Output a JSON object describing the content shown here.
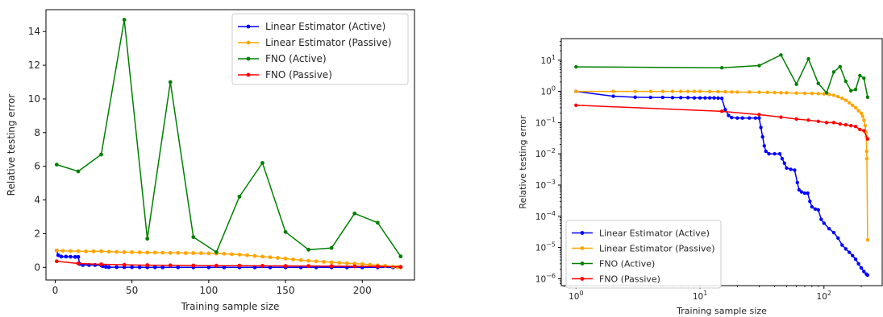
{
  "chart_data": [
    {
      "type": "line",
      "xlabel": "Training sample size",
      "ylabel": "Relative testing error",
      "xscale": "linear",
      "yscale": "linear",
      "xlim": [
        -6,
        234
      ],
      "ylim": [
        -0.75,
        15.3
      ],
      "xticks": [
        0,
        50,
        100,
        150,
        200
      ],
      "yticks": [
        0,
        2,
        4,
        6,
        8,
        10,
        12,
        14
      ],
      "xtick_labels": [
        "0",
        "50",
        "100",
        "150",
        "200"
      ],
      "ytick_labels": [
        "0",
        "2",
        "4",
        "6",
        "8",
        "10",
        "12",
        "14"
      ],
      "legend_location": "upper right",
      "grid": false,
      "series": [
        {
          "name": "Linear Estimator (Active)",
          "color": "#0000ff",
          "points": [
            [
              1,
              1.0
            ],
            [
              2,
              0.72
            ],
            [
              4,
              0.64
            ],
            [
              7,
              0.64
            ],
            [
              10,
              0.63
            ],
            [
              13,
              0.62
            ],
            [
              15,
              0.62
            ],
            [
              16,
              0.2
            ],
            [
              18,
              0.14
            ],
            [
              22,
              0.14
            ],
            [
              26,
              0.14
            ],
            [
              30,
              0.12
            ],
            [
              31,
              0.07
            ],
            [
              33,
              0.03
            ],
            [
              35,
              0.01
            ],
            [
              40,
              0.01
            ],
            [
              45,
              0.01
            ],
            [
              50,
              0.01
            ],
            [
              55,
              0.006
            ],
            [
              60,
              0.003
            ],
            [
              65,
              0.003
            ],
            [
              70,
              0.002
            ],
            [
              80,
              0.001
            ],
            [
              90,
              0.001
            ],
            [
              100,
              0.0
            ],
            [
              110,
              0.0
            ],
            [
              120,
              0.0
            ],
            [
              130,
              0.0
            ],
            [
              140,
              0.0
            ],
            [
              150,
              0.0
            ],
            [
              160,
              0.0
            ],
            [
              170,
              0.0
            ],
            [
              180,
              0.0
            ],
            [
              190,
              0.0
            ],
            [
              200,
              0.0
            ],
            [
              210,
              0.0
            ],
            [
              220,
              0.0
            ],
            [
              225,
              0.0
            ]
          ]
        },
        {
          "name": "Linear Estimator (Passive)",
          "color": "#ffa500",
          "points": [
            [
              1,
              1.0
            ],
            [
              5,
              0.98
            ],
            [
              10,
              0.97
            ],
            [
              15,
              0.96
            ],
            [
              20,
              0.95
            ],
            [
              25,
              0.95
            ],
            [
              30,
              0.96
            ],
            [
              35,
              0.93
            ],
            [
              40,
              0.92
            ],
            [
              45,
              0.9
            ],
            [
              50,
              0.9
            ],
            [
              55,
              0.89
            ],
            [
              60,
              0.88
            ],
            [
              65,
              0.88
            ],
            [
              70,
              0.87
            ],
            [
              75,
              0.86
            ],
            [
              80,
              0.86
            ],
            [
              85,
              0.85
            ],
            [
              90,
              0.85
            ],
            [
              95,
              0.84
            ],
            [
              100,
              0.83
            ],
            [
              105,
              0.82
            ],
            [
              110,
              0.81
            ],
            [
              115,
              0.78
            ],
            [
              120,
              0.76
            ],
            [
              125,
              0.72
            ],
            [
              130,
              0.68
            ],
            [
              135,
              0.64
            ],
            [
              140,
              0.6
            ],
            [
              145,
              0.56
            ],
            [
              150,
              0.52
            ],
            [
              155,
              0.47
            ],
            [
              160,
              0.43
            ],
            [
              165,
              0.39
            ],
            [
              170,
              0.36
            ],
            [
              175,
              0.33
            ],
            [
              180,
              0.3
            ],
            [
              185,
              0.27
            ],
            [
              190,
              0.24
            ],
            [
              195,
              0.22
            ],
            [
              200,
              0.2
            ],
            [
              205,
              0.16
            ],
            [
              210,
              0.12
            ],
            [
              215,
              0.09
            ],
            [
              220,
              0.05
            ],
            [
              223,
              0.02
            ],
            [
              225,
              0.0
            ]
          ]
        },
        {
          "name": "FNO (Active)",
          "color": "#008000",
          "points": [
            [
              1,
              6.1
            ],
            [
              15,
              5.7
            ],
            [
              30,
              6.7
            ],
            [
              45,
              14.7
            ],
            [
              60,
              1.7
            ],
            [
              75,
              11.0
            ],
            [
              90,
              1.8
            ],
            [
              105,
              0.9
            ],
            [
              120,
              4.2
            ],
            [
              135,
              6.2
            ],
            [
              150,
              2.1
            ],
            [
              165,
              1.05
            ],
            [
              180,
              1.15
            ],
            [
              195,
              3.2
            ],
            [
              210,
              2.65
            ],
            [
              225,
              0.65
            ]
          ]
        },
        {
          "name": "FNO (Passive)",
          "color": "#ff0000",
          "points": [
            [
              1,
              0.36
            ],
            [
              15,
              0.23
            ],
            [
              30,
              0.18
            ],
            [
              45,
              0.15
            ],
            [
              60,
              0.13
            ],
            [
              75,
              0.12
            ],
            [
              90,
              0.11
            ],
            [
              105,
              0.1
            ],
            [
              120,
              0.1
            ],
            [
              135,
              0.09
            ],
            [
              150,
              0.085
            ],
            [
              165,
              0.08
            ],
            [
              180,
              0.075
            ],
            [
              195,
              0.06
            ],
            [
              210,
              0.055
            ],
            [
              225,
              0.03
            ]
          ]
        }
      ]
    },
    {
      "type": "line",
      "xlabel": "Training sample size",
      "ylabel": "Relative testing error",
      "xscale": "log",
      "yscale": "log",
      "xlim": [
        0.76,
        295
      ],
      "ylim": [
        6e-07,
        49
      ],
      "xticks": [
        1,
        10,
        100
      ],
      "yticks": [
        1e-06,
        1e-05,
        0.0001,
        0.001,
        0.01,
        0.1,
        1,
        10
      ],
      "xtick_labels": [
        {
          "base": "10",
          "exp": "0"
        },
        {
          "base": "10",
          "exp": "1"
        },
        {
          "base": "10",
          "exp": "2"
        }
      ],
      "ytick_labels": [
        {
          "base": "10",
          "exp": "−6"
        },
        {
          "base": "10",
          "exp": "−5"
        },
        {
          "base": "10",
          "exp": "−4"
        },
        {
          "base": "10",
          "exp": "−3"
        },
        {
          "base": "10",
          "exp": "−2"
        },
        {
          "base": "10",
          "exp": "−1"
        },
        {
          "base": "10",
          "exp": "0"
        },
        {
          "base": "10",
          "exp": "1"
        }
      ],
      "legend_location": "lower left",
      "grid": false,
      "series": [
        {
          "name": "Linear Estimator (Active)",
          "color": "#0000ff",
          "points": [
            [
              1,
              1.0
            ],
            [
              2,
              0.7
            ],
            [
              3,
              0.65
            ],
            [
              4,
              0.64
            ],
            [
              5,
              0.64
            ],
            [
              6,
              0.63
            ],
            [
              7,
              0.63
            ],
            [
              8,
              0.63
            ],
            [
              9,
              0.62
            ],
            [
              10,
              0.62
            ],
            [
              11,
              0.62
            ],
            [
              12,
              0.62
            ],
            [
              13,
              0.62
            ],
            [
              14,
              0.61
            ],
            [
              15,
              0.6
            ],
            [
              16,
              0.26
            ],
            [
              17,
              0.17
            ],
            [
              18,
              0.145
            ],
            [
              20,
              0.14
            ],
            [
              22,
              0.14
            ],
            [
              25,
              0.14
            ],
            [
              28,
              0.14
            ],
            [
              30,
              0.14
            ],
            [
              31,
              0.07
            ],
            [
              32,
              0.035
            ],
            [
              33,
              0.018
            ],
            [
              34,
              0.012
            ],
            [
              36,
              0.01
            ],
            [
              40,
              0.01
            ],
            [
              44,
              0.01
            ],
            [
              46,
              0.007
            ],
            [
              48,
              0.005
            ],
            [
              50,
              0.0035
            ],
            [
              54,
              0.0032
            ],
            [
              58,
              0.003
            ],
            [
              61,
              0.0012
            ],
            [
              63,
              0.0007
            ],
            [
              66,
              0.0006
            ],
            [
              70,
              0.00055
            ],
            [
              74,
              0.00055
            ],
            [
              77,
              0.0003
            ],
            [
              80,
              0.0002
            ],
            [
              85,
              0.00017
            ],
            [
              90,
              0.00016
            ],
            [
              95,
              8e-05
            ],
            [
              100,
              6e-05
            ],
            [
              110,
              4e-05
            ],
            [
              120,
              3e-05
            ],
            [
              130,
              2e-05
            ],
            [
              140,
              1.2e-05
            ],
            [
              150,
              9e-06
            ],
            [
              160,
              7e-06
            ],
            [
              170,
              5.5e-06
            ],
            [
              180,
              4.2e-06
            ],
            [
              190,
              3e-06
            ],
            [
              200,
              2.2e-06
            ],
            [
              210,
              1.7e-06
            ],
            [
              220,
              1.4e-06
            ],
            [
              225,
              1.3e-06
            ]
          ]
        },
        {
          "name": "Linear Estimator (Passive)",
          "color": "#ffa500",
          "points": [
            [
              1,
              1.0
            ],
            [
              2,
              1.0
            ],
            [
              3,
              1.0
            ],
            [
              4,
              1.0
            ],
            [
              5,
              1.0
            ],
            [
              6,
              1.0
            ],
            [
              7,
              1.0
            ],
            [
              8,
              1.0
            ],
            [
              9,
              1.0
            ],
            [
              10,
              1.0
            ],
            [
              12,
              0.99
            ],
            [
              14,
              0.98
            ],
            [
              16,
              0.97
            ],
            [
              18,
              0.96
            ],
            [
              20,
              0.95
            ],
            [
              25,
              0.95
            ],
            [
              30,
              0.94
            ],
            [
              35,
              0.93
            ],
            [
              40,
              0.92
            ],
            [
              45,
              0.9
            ],
            [
              50,
              0.9
            ],
            [
              60,
              0.88
            ],
            [
              70,
              0.87
            ],
            [
              80,
              0.86
            ],
            [
              90,
              0.85
            ],
            [
              100,
              0.83
            ],
            [
              110,
              0.8
            ],
            [
              120,
              0.75
            ],
            [
              130,
              0.68
            ],
            [
              140,
              0.6
            ],
            [
              150,
              0.52
            ],
            [
              160,
              0.43
            ],
            [
              170,
              0.36
            ],
            [
              180,
              0.3
            ],
            [
              190,
              0.24
            ],
            [
              200,
              0.2
            ],
            [
              205,
              0.16
            ],
            [
              210,
              0.12
            ],
            [
              215,
              0.08
            ],
            [
              218,
              0.05
            ],
            [
              220,
              0.035
            ],
            [
              221,
              0.012
            ],
            [
              222,
              0.007
            ],
            [
              225,
              1.75e-05
            ]
          ]
        },
        {
          "name": "FNO (Active)",
          "color": "#008000",
          "points": [
            [
              1,
              6.1
            ],
            [
              15,
              5.7
            ],
            [
              30,
              6.7
            ],
            [
              45,
              14.7
            ],
            [
              60,
              1.7
            ],
            [
              75,
              11.0
            ],
            [
              90,
              1.8
            ],
            [
              105,
              0.9
            ],
            [
              120,
              4.2
            ],
            [
              135,
              6.2
            ],
            [
              150,
              2.1
            ],
            [
              165,
              1.05
            ],
            [
              180,
              1.15
            ],
            [
              195,
              3.2
            ],
            [
              210,
              2.65
            ],
            [
              225,
              0.65
            ]
          ]
        },
        {
          "name": "FNO (Passive)",
          "color": "#ff0000",
          "points": [
            [
              1,
              0.36
            ],
            [
              15,
              0.23
            ],
            [
              30,
              0.18
            ],
            [
              45,
              0.15
            ],
            [
              60,
              0.13
            ],
            [
              75,
              0.12
            ],
            [
              90,
              0.11
            ],
            [
              105,
              0.1
            ],
            [
              120,
              0.1
            ],
            [
              135,
              0.09
            ],
            [
              150,
              0.085
            ],
            [
              165,
              0.08
            ],
            [
              180,
              0.075
            ],
            [
              195,
              0.06
            ],
            [
              210,
              0.055
            ],
            [
              225,
              0.03
            ]
          ]
        }
      ]
    }
  ]
}
